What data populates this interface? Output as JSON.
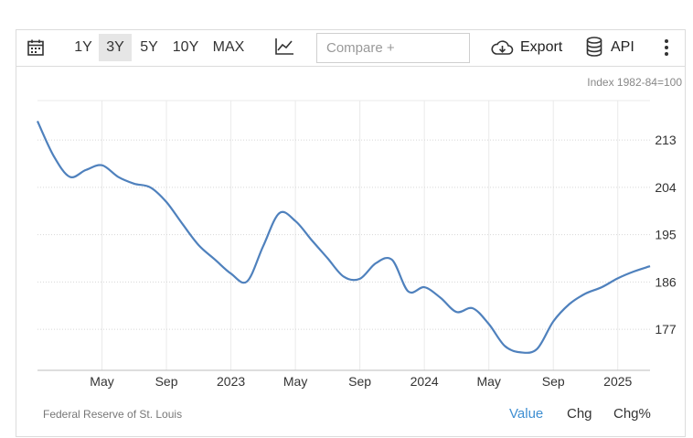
{
  "toolbar": {
    "ranges": [
      "1Y",
      "3Y",
      "5Y",
      "10Y",
      "MAX"
    ],
    "active_range": "3Y",
    "compare_placeholder": "Compare +",
    "export_label": "Export",
    "api_label": "API",
    "icons": [
      "calendar-icon",
      "line-chart-icon",
      "cloud-download-icon",
      "database-icon",
      "more-vertical-icon"
    ]
  },
  "chart_data": {
    "type": "line",
    "unit_label": "Index 1982-84=100",
    "x_tick_labels": [
      "May",
      "Sep",
      "2023",
      "May",
      "Sep",
      "2024",
      "May",
      "Sep",
      "2025"
    ],
    "x": [
      "2022-01",
      "2022-02",
      "2022-03",
      "2022-04",
      "2022-05",
      "2022-06",
      "2022-07",
      "2022-08",
      "2022-09",
      "2022-10",
      "2022-11",
      "2022-12",
      "2023-01",
      "2023-02",
      "2023-03",
      "2023-04",
      "2023-05",
      "2023-06",
      "2023-07",
      "2023-08",
      "2023-09",
      "2023-10",
      "2023-11",
      "2023-12",
      "2024-01",
      "2024-02",
      "2024-03",
      "2024-04",
      "2024-05",
      "2024-06",
      "2024-07",
      "2024-08",
      "2024-09",
      "2024-10",
      "2024-11",
      "2024-12",
      "2025-01",
      "2025-02",
      "2025-03"
    ],
    "y": [
      216.6,
      210.0,
      206.0,
      207.3,
      208.2,
      206.0,
      204.7,
      204.0,
      201.2,
      197.0,
      193.0,
      190.3,
      187.6,
      186.1,
      192.8,
      199.1,
      197.6,
      194.0,
      190.5,
      187.0,
      186.6,
      189.6,
      190.2,
      184.2,
      185.0,
      183.0,
      180.3,
      181.0,
      178.0,
      173.8,
      172.6,
      173.3,
      178.5,
      181.8,
      183.8,
      185.0,
      186.7,
      188.0,
      189.0
    ],
    "y_ticks": [
      177,
      186,
      195,
      204,
      213
    ],
    "ylim": [
      169.2,
      220.5
    ],
    "grid": true,
    "line_color": "#4f81bd"
  },
  "footer": {
    "source": "Federal Reserve of St. Louis",
    "tabs": [
      "Value",
      "Chg",
      "Chg%"
    ],
    "active_tab": "Value"
  },
  "colors": {
    "accent": "#3f8fd2",
    "line": "#4f81bd"
  }
}
